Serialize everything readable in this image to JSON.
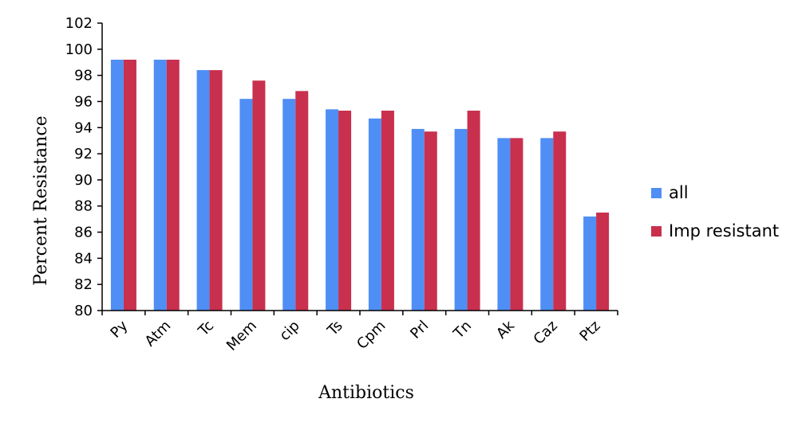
{
  "chart_data": {
    "type": "bar",
    "title": "",
    "xlabel": "Antibiotics",
    "ylabel": "Percent Resistance",
    "ylim": [
      80,
      102
    ],
    "ytick_step": 2,
    "grid": false,
    "legend_position": "right",
    "categories": [
      "Py",
      "Atm",
      "Tc",
      "Mem",
      "cip",
      "Ts",
      "Cpm",
      "Prl",
      "Tn",
      "Ak",
      "Caz",
      "Ptz"
    ],
    "series": [
      {
        "name": "all",
        "color": "#4f8ef5",
        "values": [
          99.2,
          99.2,
          98.4,
          96.2,
          96.2,
          95.4,
          94.7,
          93.9,
          93.9,
          93.2,
          93.2,
          87.2
        ]
      },
      {
        "name": "Imp resistant",
        "color": "#c8304e",
        "values": [
          99.2,
          99.2,
          98.4,
          97.6,
          96.8,
          95.3,
          95.3,
          93.7,
          95.3,
          93.2,
          93.7,
          87.5
        ]
      }
    ]
  }
}
